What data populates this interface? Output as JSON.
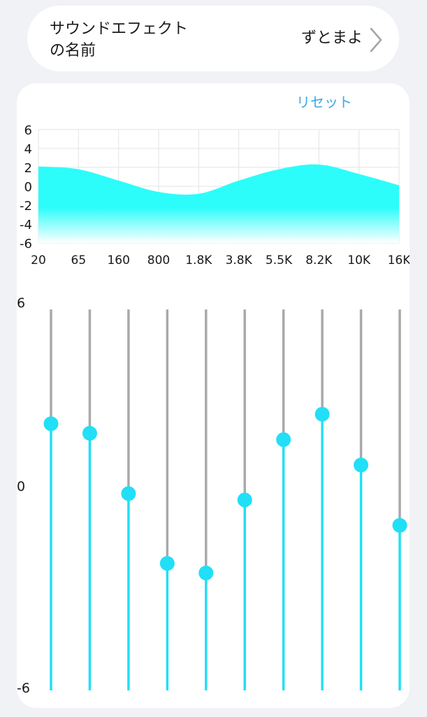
{
  "sound_effect": {
    "label": "サウンドエフェクトの名前",
    "value": "ずとまよ",
    "chevron_icon": "chevron-right-icon"
  },
  "reset_label": "リセット",
  "chart_data": {
    "type": "area",
    "title": "",
    "xlabel": "",
    "ylabel": "",
    "categories": [
      "20",
      "65",
      "160",
      "800",
      "1.8K",
      "3.8K",
      "5.5K",
      "8.2K",
      "10K",
      "16K"
    ],
    "values": [
      2.1,
      1.8,
      0.6,
      -0.6,
      -0.8,
      0.6,
      1.8,
      2.3,
      1.3,
      0.1
    ],
    "ylim": [
      -6,
      6
    ],
    "y_ticks": [
      "6",
      "4",
      "2",
      "0",
      "-2",
      "-4",
      "-6"
    ],
    "grid": true
  },
  "sliders": {
    "max_label": "6",
    "mid_label": "0",
    "min_label": "-6",
    "range": [
      -6,
      6
    ],
    "values": [
      2.4,
      2.1,
      0.2,
      -2.0,
      -2.3,
      0.0,
      1.9,
      2.7,
      1.1,
      -0.8
    ]
  },
  "colors": {
    "accent": "#21dff6",
    "curve_top": "#2cfdfb",
    "curve_bottom": "#ffffff",
    "link": "#3aa8e6",
    "track_inactive": "#a9a9ab",
    "grid": "#e3e3e3"
  }
}
